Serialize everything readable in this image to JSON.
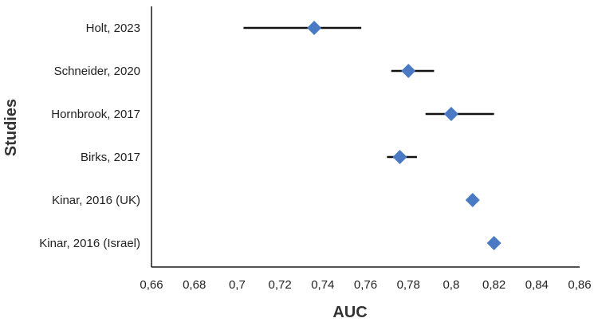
{
  "chart_data": {
    "type": "scatter",
    "subtype": "forest-plot",
    "title": "",
    "xlabel": "AUC",
    "ylabel": "Studies",
    "xlim": [
      0.66,
      0.86
    ],
    "x_ticks": [
      "0,66",
      "0,68",
      "0,7",
      "0,72",
      "0,74",
      "0,76",
      "0,78",
      "0,8",
      "0,82",
      "0,84",
      "0,86"
    ],
    "grid": false,
    "marker": "diamond",
    "marker_color": "#4a7ac4",
    "line_color": "#111111",
    "studies": [
      {
        "label": "Holt, 2023",
        "auc": 0.736,
        "ci": [
          0.703,
          0.758
        ]
      },
      {
        "label": "Schneider, 2020",
        "auc": 0.78,
        "ci": [
          0.772,
          0.792
        ]
      },
      {
        "label": "Hornbrook, 2017",
        "auc": 0.8,
        "ci": [
          0.788,
          0.82
        ]
      },
      {
        "label": "Birks, 2017",
        "auc": 0.776,
        "ci": [
          0.77,
          0.784
        ]
      },
      {
        "label": "Kinar, 2016 (UK)",
        "auc": 0.81,
        "ci": null
      },
      {
        "label": "Kinar, 2016 (Israel)",
        "auc": 0.82,
        "ci": null
      }
    ]
  }
}
